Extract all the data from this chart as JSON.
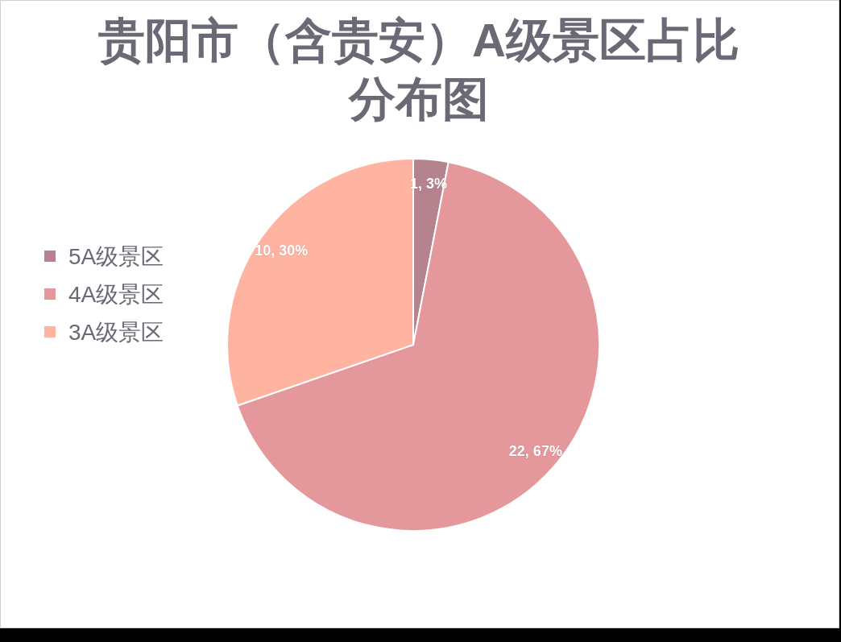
{
  "chart_data": {
    "type": "pie",
    "title": "贵阳市（含贵安）A级景区占比分布图",
    "categories": [
      "5A级景区",
      "4A级景区",
      "3A级景区"
    ],
    "values": [
      1,
      22,
      10
    ],
    "colors": [
      "#b5838d",
      "#e5989b",
      "#ffb4a2"
    ],
    "value_labels": [
      "1, 3%",
      "22, 67%",
      "10, 30%"
    ],
    "legend": "left"
  }
}
